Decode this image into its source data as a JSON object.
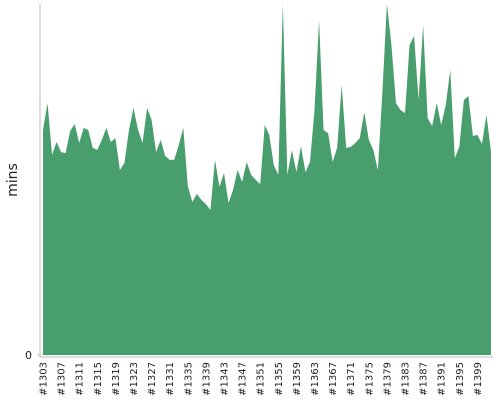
{
  "chart_data": {
    "type": "area",
    "y_label": "mins",
    "color": "#489e6c",
    "categories": [
      "#1303",
      null,
      null,
      null,
      "#1307",
      null,
      null,
      null,
      "#1311",
      null,
      null,
      null,
      "#1315",
      null,
      null,
      null,
      "#1319",
      null,
      null,
      null,
      "#1323",
      null,
      null,
      null,
      "#1327",
      null,
      null,
      null,
      "#1331",
      null,
      null,
      null,
      "#1335",
      null,
      null,
      null,
      "#1339",
      null,
      null,
      null,
      "#1343",
      null,
      null,
      null,
      "#1347",
      null,
      null,
      null,
      "#1351",
      null,
      null,
      null,
      "#1355",
      null,
      null,
      null,
      "#1359",
      null,
      null,
      null,
      "#1363",
      null,
      null,
      null,
      "#1367",
      null,
      null,
      null,
      "#1371",
      null,
      null,
      null,
      "#1375",
      null,
      null,
      null,
      "#1379",
      null,
      null,
      null,
      "#1383",
      null,
      null,
      null,
      "#1387",
      null,
      null,
      null,
      "#1391",
      null,
      null,
      null,
      "#1395",
      null,
      null,
      null,
      "#1399",
      null,
      null,
      null
    ],
    "values": [
      64.1,
      71.8,
      57.0,
      60.7,
      57.8,
      57.5,
      63.8,
      65.8,
      60.4,
      64.7,
      64.1,
      59.0,
      58.4,
      61.3,
      64.7,
      60.7,
      61.8,
      52.7,
      54.7,
      64.1,
      70.4,
      64.1,
      60.4,
      70.4,
      67.0,
      57.8,
      61.3,
      56.7,
      55.6,
      55.6,
      59.8,
      64.7,
      48.1,
      43.6,
      45.9,
      44.2,
      43.0,
      41.3,
      55.6,
      47.9,
      51.9,
      43.3,
      47.0,
      52.7,
      49.3,
      55.0,
      51.3,
      49.9,
      48.7,
      65.5,
      62.7,
      54.1,
      51.3,
      100,
      51.3,
      58.4,
      52.1,
      59.5,
      52.1,
      55.0,
      69.8,
      95.4,
      64.1,
      63.2,
      55.0,
      59.0,
      76.9,
      59.0,
      59.3,
      60.4,
      61.8,
      69.2,
      61.3,
      58.4,
      52.7,
      74.9,
      100,
      88.3,
      71.8,
      69.8,
      68.9,
      88.3,
      90.9,
      72.6,
      94.0,
      67.5,
      65.2,
      71.8,
      65.5,
      71.2,
      81.2,
      56.1,
      59.3,
      72.6,
      73.8,
      62.4,
      62.7,
      60.1,
      68.4,
      57.8
    ],
    "ylim": [
      0,
      100
    ],
    "yticks": [
      0
    ]
  }
}
